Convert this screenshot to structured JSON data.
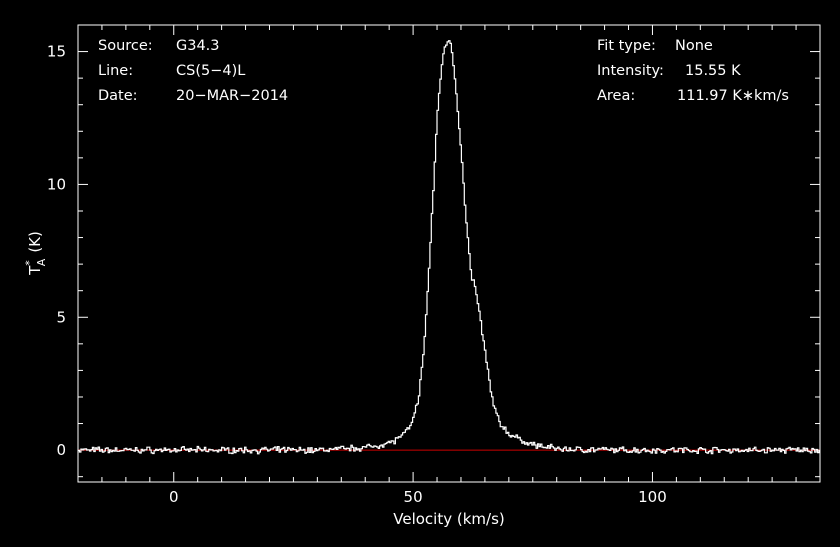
{
  "colors": {
    "background": "#000000",
    "axis": "#ffffff",
    "spectrum": "#ffffff",
    "baseline": "#cc0000"
  },
  "info_left": [
    {
      "key": "Source:",
      "value": "G34.3"
    },
    {
      "key": "Line:",
      "value": "CS(5−4)L"
    },
    {
      "key": "Date:",
      "value": "20−MAR−2014"
    }
  ],
  "info_right": [
    {
      "key": "Fit type:",
      "value": "None"
    },
    {
      "key": "Intensity:",
      "value": "15.55 K"
    },
    {
      "key": "Area:",
      "value": "111.97 K∗km/s"
    }
  ],
  "chart_data": {
    "type": "line",
    "xlabel": "Velocity (km/s)",
    "ylabel_main": "T",
    "ylabel_sup": "*",
    "ylabel_sub": "A",
    "ylabel_unit": "(K)",
    "xlim": [
      -20,
      135
    ],
    "ylim": [
      -1.2,
      16
    ],
    "xticks": [
      0,
      50,
      100
    ],
    "yticks": [
      0,
      5,
      10,
      15
    ],
    "xtick_labels": [
      "0",
      "50",
      "100"
    ],
    "ytick_labels": [
      "0",
      "5",
      "10",
      "15"
    ],
    "grid": false,
    "baseline": 0,
    "series": [
      {
        "x": [
          -20,
          -10,
          0,
          10,
          20,
          30,
          35,
          40,
          42,
          44,
          46,
          47,
          48,
          49,
          50,
          51,
          52,
          53,
          54,
          55,
          56,
          57,
          57.5,
          58,
          59,
          60,
          61,
          62,
          63,
          64,
          65,
          66,
          67,
          68,
          70,
          72,
          75,
          80,
          90,
          100,
          110,
          120,
          135
        ],
        "values": [
          0,
          0,
          0,
          0,
          0,
          0,
          0.05,
          0.1,
          0.15,
          0.25,
          0.35,
          0.5,
          0.6,
          0.8,
          1.2,
          2.0,
          3.5,
          6.2,
          9.5,
          12.8,
          14.8,
          15.4,
          15.55,
          15.0,
          13.3,
          11.0,
          8.5,
          6.6,
          6.0,
          4.8,
          3.6,
          2.3,
          1.5,
          1.0,
          0.6,
          0.4,
          0.2,
          0.05,
          0,
          0,
          0,
          0,
          0
        ]
      }
    ]
  }
}
